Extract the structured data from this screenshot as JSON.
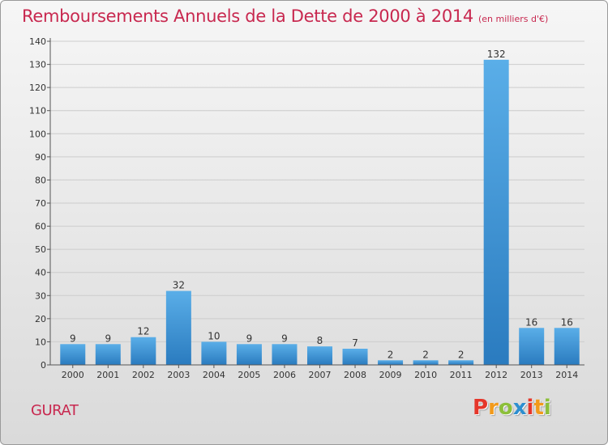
{
  "title": "Remboursements Annuels de la Dette de 2000 à 2014",
  "subtitle": "(en milliers d'€)",
  "commune": "GURAT",
  "logo": {
    "text": "Proxiti",
    "letters": [
      "P",
      "r",
      "o",
      "x",
      "i",
      "t",
      "i"
    ]
  },
  "colors": {
    "title": "#c8284f",
    "bar_light": "#5aaee8",
    "bar_dark": "#2a7bbf",
    "grid": "#cccccc"
  },
  "chart_data": {
    "type": "bar",
    "title": "Remboursements Annuels de la Dette de 2000 à 2014",
    "xlabel": "",
    "ylabel": "",
    "categories": [
      "2000",
      "2001",
      "2002",
      "2003",
      "2004",
      "2005",
      "2006",
      "2007",
      "2008",
      "2009",
      "2010",
      "2011",
      "2012",
      "2013",
      "2014"
    ],
    "values": [
      9,
      9,
      12,
      32,
      10,
      9,
      9,
      8,
      7,
      2,
      2,
      2,
      132,
      16,
      16
    ],
    "ylim": [
      0,
      140
    ],
    "yticks": [
      0,
      10,
      20,
      30,
      40,
      50,
      60,
      70,
      80,
      90,
      100,
      110,
      120,
      130,
      140
    ],
    "grid": true
  }
}
